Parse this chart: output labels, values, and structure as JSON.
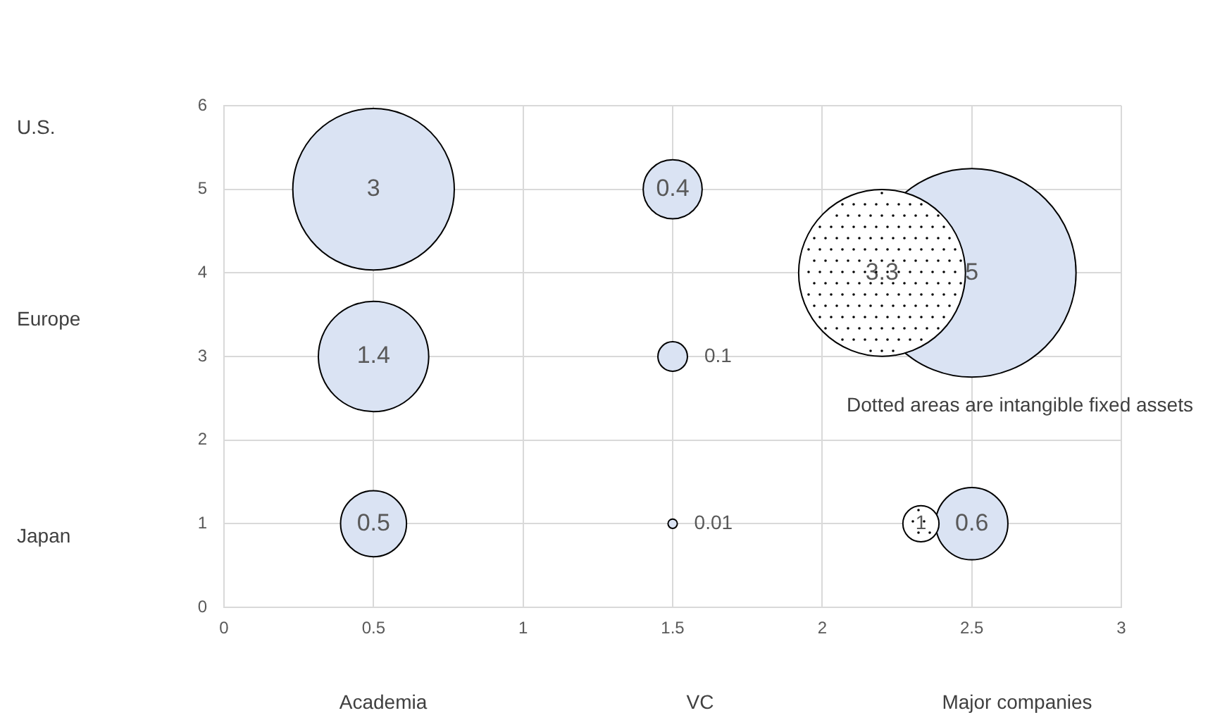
{
  "chart_data": {
    "type": "bubble",
    "xlim": [
      0,
      3
    ],
    "xticks": [
      0,
      0.5,
      1,
      1.5,
      2,
      2.5,
      3
    ],
    "ylim": [
      0,
      6
    ],
    "yticks": [
      0,
      1,
      2,
      3,
      4,
      5,
      6
    ],
    "grid": true,
    "legend": false,
    "series": [
      {
        "color": "#dae3f3",
        "x": [
          0.5,
          1.5,
          2.5,
          0.5,
          1.5,
          0.5,
          1.5,
          2.5
        ],
        "values": [
          5,
          5,
          4,
          3,
          3,
          1,
          1,
          1
        ],
        "sizes": [
          0.6,
          0.08,
          1,
          0.28,
          0.02,
          0.1,
          0.002,
          0.12
        ]
      },
      {
        "color": "#ffffff",
        "line_style": "dotted",
        "x": [
          2.2,
          2.33
        ],
        "values": [
          4,
          1
        ],
        "sizes": [
          0.64,
          0.03
        ]
      }
    ],
    "annotations": [
      {
        "text": "3",
        "x": 0.5,
        "y": 5
      },
      {
        "text": "0.4",
        "x": 1.5,
        "y": 5
      },
      {
        "text": "5",
        "x": 2.5,
        "y": 4
      },
      {
        "text": "3.3",
        "x": 2.2,
        "y": 4
      },
      {
        "text": "1.4",
        "x": 0.5,
        "y": 3
      },
      {
        "text": "0.1",
        "x": 1.5,
        "y": 3
      },
      {
        "text": "0.5",
        "x": 0.5,
        "y": 1
      },
      {
        "text": "0.01",
        "x": 1.5,
        "y": 1
      },
      {
        "text": "1",
        "x": 2.33,
        "y": 1
      },
      {
        "text": "0.6",
        "x": 2.5,
        "y": 1
      },
      "Academia",
      "VC",
      "Major companies",
      "U.S.",
      "Europe",
      "Japan",
      "Dotted areas are intangible fixed assets"
    ]
  }
}
